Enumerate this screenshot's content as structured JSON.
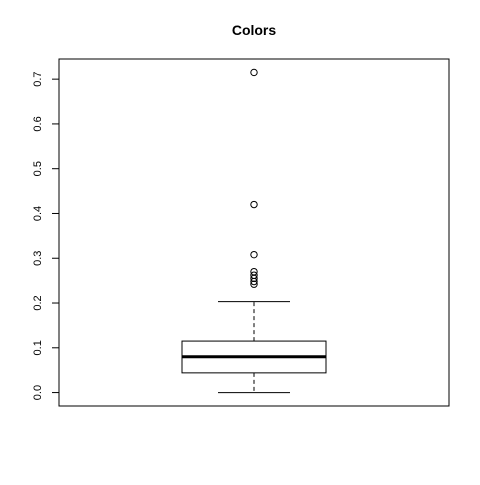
{
  "chart_data": {
    "type": "box",
    "title": "Colors",
    "xlabel": "",
    "ylabel": "",
    "ylim": [
      -0.03,
      0.745
    ],
    "yticks": [
      0.0,
      0.1,
      0.2,
      0.3,
      0.4,
      0.5,
      0.6,
      0.7
    ],
    "ytick_labels": [
      "0.0",
      "0.1",
      "0.2",
      "0.3",
      "0.4",
      "0.5",
      "0.6",
      "0.7"
    ],
    "grid": false,
    "box": {
      "whisker_low": 0.0,
      "q1": 0.044,
      "median": 0.08,
      "q3": 0.115,
      "whisker_high": 0.203
    },
    "outliers": [
      0.715,
      0.42,
      0.308,
      0.27,
      0.262,
      0.255,
      0.248,
      0.242
    ]
  }
}
